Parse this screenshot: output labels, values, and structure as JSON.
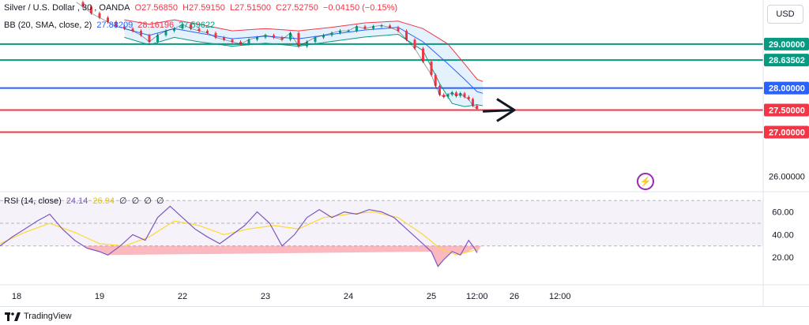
{
  "chart_data": {
    "type": "line",
    "instrument": {
      "symbol": "Silver / U.S. Dollar",
      "interval": "30",
      "source": "OANDA",
      "open_label": "O27.56850",
      "high_label": "H27.59150",
      "low_label": "L27.51500",
      "close_label": "C27.52750",
      "change_label": "−0.04150 (−0.15%)"
    },
    "bb_legend": {
      "label": "BB (20, SMA, close, 2)",
      "basis": "27.88209",
      "upper": "28.16196",
      "lower": "27.59622"
    },
    "rsi_legend": {
      "label": "RSI (14, close)",
      "rsi": "24.14",
      "rsi_ma": "26.94",
      "extras": [
        "∅",
        "∅",
        "∅",
        "∅"
      ]
    },
    "currency": "USD",
    "ylim": [
      25.7,
      30.0
    ],
    "price_labels": [
      "26.00000"
    ],
    "horizontal_levels": [
      {
        "value": 29.0,
        "label": "29.00000",
        "color": "#089981"
      },
      {
        "value": 28.63502,
        "label": "28.63502",
        "color": "#089981"
      },
      {
        "value": 28.0,
        "label": "28.00000",
        "color": "#2962ff"
      },
      {
        "value": 27.5,
        "label": "27.50000",
        "color": "#f23645"
      },
      {
        "value": 27.0,
        "label": "27.00000",
        "color": "#f23645"
      }
    ],
    "rsi_ylim": [
      0,
      75
    ],
    "rsi_axis_labels": [
      {
        "value": 60,
        "label": "60.00"
      },
      {
        "value": 40,
        "label": "40.00"
      },
      {
        "value": 20,
        "label": "20.00"
      }
    ],
    "rsi_band": [
      30,
      70
    ],
    "rsi_midline": 50,
    "x_range": [
      17.8,
      27.0
    ],
    "x_ticks": [
      {
        "x": 18.0,
        "label": "18"
      },
      {
        "x": 19.0,
        "label": "19"
      },
      {
        "x": 20.0,
        "label": "22"
      },
      {
        "x": 21.0,
        "label": "23"
      },
      {
        "x": 22.0,
        "label": "24"
      },
      {
        "x": 23.0,
        "label": "25"
      },
      {
        "x": 23.55,
        "label": "12:00"
      },
      {
        "x": 24.0,
        "label": "26"
      },
      {
        "x": 24.55,
        "label": "12:00"
      }
    ],
    "price_series": [
      {
        "x": 18.72,
        "y": 29.95
      },
      {
        "x": 18.8,
        "y": 29.85
      },
      {
        "x": 18.9,
        "y": 29.7
      },
      {
        "x": 19.0,
        "y": 29.6
      },
      {
        "x": 19.1,
        "y": 29.5
      },
      {
        "x": 19.2,
        "y": 29.4
      },
      {
        "x": 19.3,
        "y": 29.35
      },
      {
        "x": 19.4,
        "y": 29.3
      },
      {
        "x": 19.5,
        "y": 29.2
      },
      {
        "x": 19.6,
        "y": 29.05
      },
      {
        "x": 19.7,
        "y": 29.2
      },
      {
        "x": 19.8,
        "y": 29.3
      },
      {
        "x": 19.9,
        "y": 29.35
      },
      {
        "x": 20.0,
        "y": 29.45
      },
      {
        "x": 20.1,
        "y": 29.35
      },
      {
        "x": 20.2,
        "y": 29.3
      },
      {
        "x": 20.3,
        "y": 29.25
      },
      {
        "x": 20.4,
        "y": 29.15
      },
      {
        "x": 20.5,
        "y": 29.1
      },
      {
        "x": 20.6,
        "y": 29.05
      },
      {
        "x": 20.7,
        "y": 29.0
      },
      {
        "x": 20.8,
        "y": 29.1
      },
      {
        "x": 20.9,
        "y": 29.15
      },
      {
        "x": 21.0,
        "y": 29.2
      },
      {
        "x": 21.1,
        "y": 29.15
      },
      {
        "x": 21.2,
        "y": 29.1
      },
      {
        "x": 21.3,
        "y": 29.25
      },
      {
        "x": 21.4,
        "y": 28.95
      },
      {
        "x": 21.5,
        "y": 29.05
      },
      {
        "x": 21.6,
        "y": 29.15
      },
      {
        "x": 21.7,
        "y": 29.2
      },
      {
        "x": 21.8,
        "y": 29.25
      },
      {
        "x": 21.9,
        "y": 29.3
      },
      {
        "x": 22.0,
        "y": 29.3
      },
      {
        "x": 22.1,
        "y": 29.4
      },
      {
        "x": 22.2,
        "y": 29.35
      },
      {
        "x": 22.3,
        "y": 29.4
      },
      {
        "x": 22.4,
        "y": 29.42
      },
      {
        "x": 22.5,
        "y": 29.38
      },
      {
        "x": 22.6,
        "y": 29.3
      },
      {
        "x": 22.7,
        "y": 29.1
      },
      {
        "x": 22.8,
        "y": 28.9
      },
      {
        "x": 22.9,
        "y": 28.6
      },
      {
        "x": 23.0,
        "y": 28.3
      },
      {
        "x": 23.05,
        "y": 28.05
      },
      {
        "x": 23.1,
        "y": 27.85
      },
      {
        "x": 23.15,
        "y": 27.8
      },
      {
        "x": 23.2,
        "y": 27.85
      },
      {
        "x": 23.25,
        "y": 27.9
      },
      {
        "x": 23.3,
        "y": 27.82
      },
      {
        "x": 23.35,
        "y": 27.88
      },
      {
        "x": 23.4,
        "y": 27.8
      },
      {
        "x": 23.45,
        "y": 27.75
      },
      {
        "x": 23.5,
        "y": 27.6
      },
      {
        "x": 23.55,
        "y": 27.53
      }
    ],
    "bb_upper": [
      {
        "x": 19.3,
        "y": 29.55
      },
      {
        "x": 19.6,
        "y": 29.45
      },
      {
        "x": 19.9,
        "y": 29.55
      },
      {
        "x": 20.2,
        "y": 29.45
      },
      {
        "x": 20.6,
        "y": 29.3
      },
      {
        "x": 21.0,
        "y": 29.35
      },
      {
        "x": 21.4,
        "y": 29.3
      },
      {
        "x": 21.8,
        "y": 29.38
      },
      {
        "x": 22.2,
        "y": 29.48
      },
      {
        "x": 22.6,
        "y": 29.52
      },
      {
        "x": 22.9,
        "y": 29.35
      },
      {
        "x": 23.2,
        "y": 29.0
      },
      {
        "x": 23.4,
        "y": 28.55
      },
      {
        "x": 23.55,
        "y": 28.2
      },
      {
        "x": 23.62,
        "y": 28.15
      }
    ],
    "bb_basis": [
      {
        "x": 19.3,
        "y": 29.35
      },
      {
        "x": 19.6,
        "y": 29.2
      },
      {
        "x": 19.9,
        "y": 29.35
      },
      {
        "x": 20.2,
        "y": 29.25
      },
      {
        "x": 20.6,
        "y": 29.12
      },
      {
        "x": 21.0,
        "y": 29.18
      },
      {
        "x": 21.4,
        "y": 29.12
      },
      {
        "x": 21.8,
        "y": 29.22
      },
      {
        "x": 22.2,
        "y": 29.32
      },
      {
        "x": 22.6,
        "y": 29.38
      },
      {
        "x": 22.9,
        "y": 29.05
      },
      {
        "x": 23.2,
        "y": 28.55
      },
      {
        "x": 23.4,
        "y": 28.2
      },
      {
        "x": 23.55,
        "y": 27.92
      },
      {
        "x": 23.62,
        "y": 27.88
      }
    ],
    "bb_lower": [
      {
        "x": 19.3,
        "y": 29.15
      },
      {
        "x": 19.6,
        "y": 28.98
      },
      {
        "x": 19.9,
        "y": 29.15
      },
      {
        "x": 20.2,
        "y": 29.05
      },
      {
        "x": 20.6,
        "y": 28.95
      },
      {
        "x": 21.0,
        "y": 29.02
      },
      {
        "x": 21.4,
        "y": 28.95
      },
      {
        "x": 21.8,
        "y": 29.06
      },
      {
        "x": 22.2,
        "y": 29.16
      },
      {
        "x": 22.6,
        "y": 29.22
      },
      {
        "x": 22.9,
        "y": 28.85
      },
      {
        "x": 23.1,
        "y": 28.1
      },
      {
        "x": 23.25,
        "y": 27.65
      },
      {
        "x": 23.4,
        "y": 27.58
      },
      {
        "x": 23.55,
        "y": 27.62
      },
      {
        "x": 23.62,
        "y": 27.6
      }
    ],
    "rsi_series": [
      {
        "x": 17.8,
        "y": 30
      },
      {
        "x": 17.95,
        "y": 38
      },
      {
        "x": 18.1,
        "y": 45
      },
      {
        "x": 18.25,
        "y": 52
      },
      {
        "x": 18.4,
        "y": 58
      },
      {
        "x": 18.55,
        "y": 45
      },
      {
        "x": 18.7,
        "y": 35
      },
      {
        "x": 18.85,
        "y": 28
      },
      {
        "x": 19.0,
        "y": 25
      },
      {
        "x": 19.1,
        "y": 22
      },
      {
        "x": 19.25,
        "y": 30
      },
      {
        "x": 19.4,
        "y": 40
      },
      {
        "x": 19.55,
        "y": 35
      },
      {
        "x": 19.7,
        "y": 55
      },
      {
        "x": 19.85,
        "y": 65
      },
      {
        "x": 20.0,
        "y": 55
      },
      {
        "x": 20.15,
        "y": 45
      },
      {
        "x": 20.3,
        "y": 38
      },
      {
        "x": 20.45,
        "y": 32
      },
      {
        "x": 20.6,
        "y": 40
      },
      {
        "x": 20.75,
        "y": 48
      },
      {
        "x": 20.9,
        "y": 60
      },
      {
        "x": 21.05,
        "y": 50
      },
      {
        "x": 21.2,
        "y": 30
      },
      {
        "x": 21.35,
        "y": 40
      },
      {
        "x": 21.5,
        "y": 55
      },
      {
        "x": 21.65,
        "y": 62
      },
      {
        "x": 21.8,
        "y": 55
      },
      {
        "x": 21.95,
        "y": 60
      },
      {
        "x": 22.1,
        "y": 58
      },
      {
        "x": 22.25,
        "y": 62
      },
      {
        "x": 22.4,
        "y": 60
      },
      {
        "x": 22.55,
        "y": 55
      },
      {
        "x": 22.7,
        "y": 45
      },
      {
        "x": 22.85,
        "y": 35
      },
      {
        "x": 23.0,
        "y": 25
      },
      {
        "x": 23.08,
        "y": 12
      },
      {
        "x": 23.15,
        "y": 18
      },
      {
        "x": 23.25,
        "y": 25
      },
      {
        "x": 23.35,
        "y": 22
      },
      {
        "x": 23.45,
        "y": 35
      },
      {
        "x": 23.52,
        "y": 28
      },
      {
        "x": 23.55,
        "y": 24
      }
    ],
    "rsi_ma_series": [
      {
        "x": 17.8,
        "y": 32
      },
      {
        "x": 18.1,
        "y": 42
      },
      {
        "x": 18.4,
        "y": 50
      },
      {
        "x": 18.7,
        "y": 42
      },
      {
        "x": 19.0,
        "y": 32
      },
      {
        "x": 19.3,
        "y": 30
      },
      {
        "x": 19.6,
        "y": 38
      },
      {
        "x": 19.9,
        "y": 52
      },
      {
        "x": 20.2,
        "y": 48
      },
      {
        "x": 20.5,
        "y": 40
      },
      {
        "x": 20.8,
        "y": 45
      },
      {
        "x": 21.1,
        "y": 48
      },
      {
        "x": 21.4,
        "y": 45
      },
      {
        "x": 21.7,
        "y": 55
      },
      {
        "x": 22.0,
        "y": 58
      },
      {
        "x": 22.3,
        "y": 60
      },
      {
        "x": 22.6,
        "y": 55
      },
      {
        "x": 22.9,
        "y": 40
      },
      {
        "x": 23.1,
        "y": 28
      },
      {
        "x": 23.3,
        "y": 22
      },
      {
        "x": 23.45,
        "y": 25
      },
      {
        "x": 23.55,
        "y": 27
      }
    ],
    "arrow": {
      "from": {
        "x": 23.62,
        "y": 27.47
      },
      "to": {
        "x": 24.0,
        "y": 27.5
      }
    },
    "colors": {
      "price": "#131722",
      "bb_upper": "#f23645",
      "bb_basis": "#2962ff",
      "bb_lower": "#089981",
      "bb_fill": "#2196f3",
      "rsi": "#7e57c2",
      "rsi_ma": "#fdd835",
      "rsi_band": "#7e57c2",
      "oversold": "#f23645"
    }
  },
  "footer": {
    "brand": "TradingView"
  }
}
